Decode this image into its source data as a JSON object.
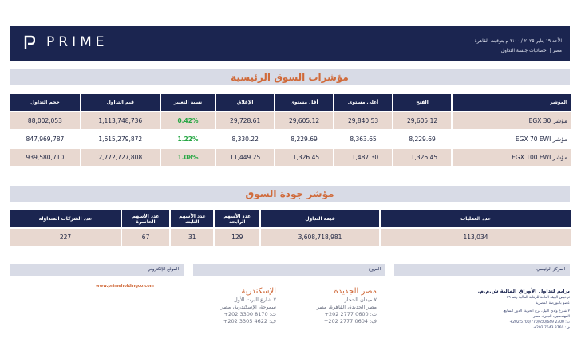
{
  "header": {
    "brand": "PRIME",
    "date_line": "الأحد ١٩ يناير ٢٠٢٥ / ٣:٠٠ م بتوقيت القاهرة",
    "subtitle_line": "مصر | إحصائيات جلسة التداول"
  },
  "indices": {
    "title": "مؤشرات السوق الرئيسية",
    "columns": [
      "المؤشر",
      "الفتح",
      "أعلى مستوى",
      "أقل مستوى",
      "الإغلاق",
      "نسبة التغيير",
      "قيم التداول",
      "حجم التداول"
    ],
    "rows": [
      [
        "مؤشر EGX 30",
        "29,605.12",
        "29,840.53",
        "29,605.12",
        "29,728.61",
        "0.42%",
        "1,113,748,736",
        "88,002,053"
      ],
      [
        "مؤشر EGX 70 EWI",
        "8,229.69",
        "8,363.65",
        "8,229.69",
        "8,330.22",
        "1.22%",
        "1,615,279,872",
        "847,969,787"
      ],
      [
        "مؤشر EGX 100 EWI",
        "11,326.45",
        "11,487.30",
        "11,326.45",
        "11,449.25",
        "1.08%",
        "2,772,727,808",
        "939,580,710"
      ]
    ]
  },
  "quality": {
    "title": "مؤشر جودة السوق",
    "columns": [
      "عدد العمليات",
      "قيمة التداول",
      "عدد الأسهم الرابحة",
      "عدد الأسهم الثابته",
      "عدد الأسهم الخاسرة",
      "عدد الشركات المتداولة"
    ],
    "values": [
      "113,034",
      "3,608,718,981",
      "129",
      "31",
      "67",
      "227"
    ]
  },
  "footer": {
    "hq_label": "المركز الرئيسي",
    "branches_label": "الفروع",
    "website_label": "الموقع الإلكتروني",
    "hq_name": "برايم لتداول الأوراق المالية ش.م.م.",
    "hq_lines": [
      "ترخيص الهيئة العامة للرقابة المالية رقم ٢٦",
      "عضو بالبورصة المصرية",
      "٢ شارع وادي النيل، برج الحرية، الدور السابع،",
      "المهندسين، الجيزة، مصر",
      "ت: 2300 5700/770/650/649 202+",
      "ف: 3760 7543 202+"
    ],
    "branch1_city": "مصر الجديدة",
    "branch1_lines": [
      "٧ ميدان الحجاز",
      "مصر الجديدة، القاهرة، مصر",
      "ت: 0600 2777 202+",
      "ف: 0604 2777 202+"
    ],
    "branch2_city": "الإسكندرية",
    "branch2_lines": [
      "٧ شارع البرت الأول",
      "سموحة، الإسكندرية، مصر",
      "ت: 8170 3300 202+",
      "ف: 4622 3305 202+"
    ],
    "website": "www.primeholdingco.com"
  }
}
